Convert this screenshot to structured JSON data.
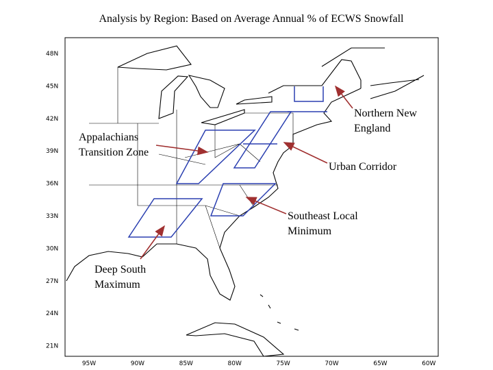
{
  "title": "Analysis by Region:  Based on Average Annual % of ECWS Snowfall",
  "lat_labels": [
    "48N",
    "45N",
    "42N",
    "39N",
    "36N",
    "33N",
    "30N",
    "27N",
    "24N",
    "21N"
  ],
  "lon_labels": [
    "95W",
    "90W",
    "85W",
    "80W",
    "75W",
    "70W",
    "65W",
    "60W"
  ],
  "regions": [
    {
      "lines": [
        "Northern New",
        "England"
      ]
    },
    {
      "lines": [
        "Appalachians",
        "Transition Zone"
      ]
    },
    {
      "lines": [
        "Urban Corridor"
      ]
    },
    {
      "lines": [
        "Southeast Local",
        "Minimum"
      ]
    },
    {
      "lines": [
        "Deep South",
        "Maximum"
      ]
    }
  ]
}
